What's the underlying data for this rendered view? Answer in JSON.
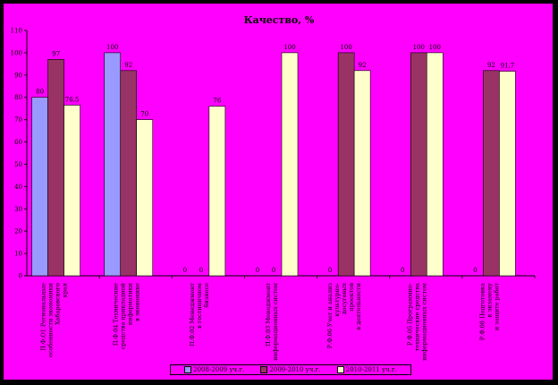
{
  "chart_data": {
    "type": "bar",
    "title": "Качество, %",
    "ylim": [
      0,
      110
    ],
    "yticks": [
      0,
      10,
      20,
      30,
      40,
      50,
      60,
      70,
      80,
      90,
      100,
      110
    ],
    "grid": false,
    "legend_position": "bottom",
    "categories": [
      "П.Ф.О1 Региональные\nособенности экономики\nХабаровского\nкрая",
      "П.Ф.04 Технические\nсредства прикладной\nинформатики\nв экономике",
      "П.Ф.02 Менеджмент\nв гостиничном\nбизнесе",
      "П.Ф.03 Менеджмент\nинформационных систем",
      "Р.Ф.06 Учет и анализ\nкультурно-\nдосуговых\nпроектов\nв деятельности",
      "Р.Ф.05 Программно-\nтехнические средства\nинформационных систем",
      "Р.Ф.08 Подготовка\nк экзамену\nи защите работ"
    ],
    "series": [
      {
        "name": "2008-2009 уч.г.",
        "color": "#9999ff",
        "values": [
          80,
          100,
          0,
          0,
          0,
          0,
          0
        ]
      },
      {
        "name": "2009-2010 уч.г.",
        "color": "#993366",
        "values": [
          97,
          92,
          0,
          0,
          100,
          100,
          92
        ]
      },
      {
        "name": "2010-2011 уч.г.",
        "color": "#ffffcc",
        "values": [
          76.5,
          70,
          76,
          100,
          92,
          100,
          91.7
        ]
      }
    ],
    "data_labels": [
      [
        "80",
        "100",
        "0",
        "0",
        "0",
        "0",
        "0"
      ],
      [
        "97",
        "92",
        "0",
        "0",
        "100",
        "100",
        "92"
      ],
      [
        "76,5",
        "70",
        "76",
        "100",
        "92",
        "100",
        "91,7"
      ]
    ]
  }
}
